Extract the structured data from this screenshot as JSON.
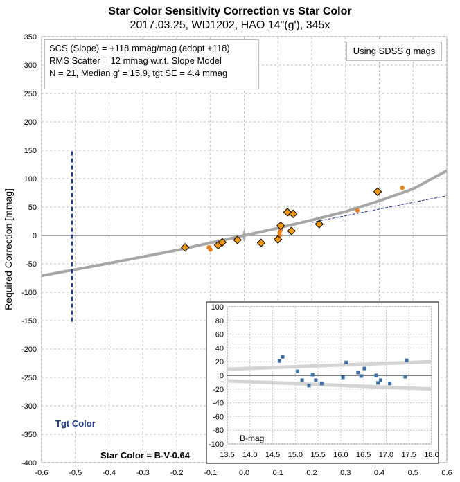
{
  "title": "Star Color Sensitivity Correction vs Star Color",
  "subtitle": "2017.03.25, WD1202, HAO 14\"(g'), 345x",
  "info_lines": [
    "SCS (Slope)  =  +118 mmag/mag (adopt +118)",
    "RMS Scatter = 12 mmag w.r.t. Slope Model",
    "N = 21,  Median g' = 15.9, tgt SE =  4.4 mmag"
  ],
  "legend_box": "Using SDSS g mags",
  "tgt_label": "Tgt Color",
  "x_annotation": "Star Color = B-V-0.64",
  "colors": {
    "points_fill": "#f0960f",
    "points_outline": "#000000",
    "small_points": "#e8801a",
    "fit_line": "#a6a6a6",
    "slope_line": "#1f2a8a",
    "target_line": "#1f3a8a",
    "inset_points": "#3a6ea5",
    "inset_bands": "#d4d4d4"
  },
  "chart_data": [
    {
      "type": "scatter",
      "title": "Star Color Sensitivity Correction vs Star Color",
      "xlabel": "",
      "ylabel": "Required Correction [mmag]",
      "xlim": [
        -0.6,
        0.6
      ],
      "ylim": [
        -400,
        350
      ],
      "xticks": [
        "-0.6",
        "-0.5",
        "-0.4",
        "-0.3",
        "-0.2",
        "-0.1",
        "0.0",
        "0.1",
        "0.2",
        "0.3",
        "0.4",
        "0.5",
        "0.6"
      ],
      "yticks": [
        "350",
        "300",
        "250",
        "200",
        "150",
        "100",
        "50",
        "0",
        "-50",
        "-100",
        "-150",
        "-200",
        "-250",
        "-300",
        "-350",
        "-400"
      ],
      "grid": true,
      "series": [
        {
          "kind": "diamond",
          "points": [
            [
              -0.175,
              -21
            ],
            [
              -0.077,
              -17
            ],
            [
              -0.065,
              -12
            ],
            [
              -0.02,
              -8
            ],
            [
              0.05,
              -13
            ],
            [
              0.1,
              -7
            ],
            [
              0.108,
              17
            ],
            [
              0.128,
              41
            ],
            [
              0.14,
              8
            ],
            [
              0.145,
              38
            ],
            [
              0.222,
              20
            ],
            [
              0.395,
              77
            ]
          ]
        },
        {
          "kind": "dot",
          "points": [
            [
              -0.105,
              -21
            ],
            [
              -0.1,
              -25
            ],
            [
              0.105,
              0
            ],
            [
              0.105,
              5
            ],
            [
              0.108,
              10
            ],
            [
              0.13,
              38
            ],
            [
              0.335,
              44
            ],
            [
              0.468,
              84
            ]
          ]
        },
        {
          "kind": "fit",
          "points": [
            [
              -0.6,
              -71
            ],
            [
              -0.4,
              -49
            ],
            [
              -0.2,
              -26
            ],
            [
              0.0,
              0
            ],
            [
              0.1,
              13
            ],
            [
              0.2,
              27
            ],
            [
              0.3,
              42
            ],
            [
              0.4,
              61
            ],
            [
              0.5,
              82
            ],
            [
              0.6,
              114
            ]
          ]
        },
        {
          "kind": "slope",
          "points": [
            [
              0.2,
              23
            ],
            [
              0.6,
              70
            ]
          ]
        },
        {
          "kind": "target",
          "x": -0.51,
          "y_range": [
            -152,
            148
          ]
        }
      ]
    },
    {
      "type": "scatter",
      "title": "",
      "xlabel": "B-mag",
      "ylabel": "",
      "xlim": [
        13.5,
        18.0
      ],
      "ylim": [
        -100,
        100
      ],
      "xticks": [
        "13.5",
        "14.0",
        "14.5",
        "15.0",
        "15.5",
        "16.0",
        "16.5",
        "17.0",
        "17.5",
        "18.0"
      ],
      "yticks": [
        "100",
        "80",
        "60",
        "40",
        "20",
        "0",
        "-20",
        "-40",
        "-60",
        "-80",
        "-100"
      ],
      "grid": true,
      "points": [
        [
          14.65,
          21
        ],
        [
          14.72,
          27
        ],
        [
          15.05,
          6
        ],
        [
          15.15,
          -7
        ],
        [
          15.3,
          -15
        ],
        [
          15.38,
          1
        ],
        [
          15.45,
          -7
        ],
        [
          15.58,
          -12
        ],
        [
          16.05,
          -3
        ],
        [
          16.12,
          19
        ],
        [
          16.38,
          4
        ],
        [
          16.45,
          -1
        ],
        [
          16.52,
          10
        ],
        [
          16.78,
          0
        ],
        [
          16.82,
          -11
        ],
        [
          16.88,
          -7
        ],
        [
          17.08,
          -12
        ],
        [
          17.42,
          -2
        ],
        [
          17.45,
          22
        ]
      ],
      "bands": [
        {
          "name": "upper",
          "points": [
            [
              13.5,
              9
            ],
            [
              18.0,
              20
            ]
          ]
        },
        {
          "name": "lower",
          "points": [
            [
              13.5,
              -8
            ],
            [
              18.0,
              -20
            ]
          ]
        }
      ]
    }
  ]
}
